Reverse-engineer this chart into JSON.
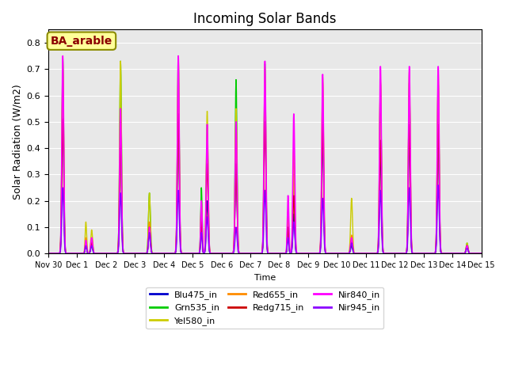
{
  "title": "Incoming Solar Bands",
  "xlabel": "Time",
  "ylabel": "Solar Radiation (W/m2)",
  "annotation_text": "BA_arable",
  "annotation_color": "#8B0000",
  "annotation_bg": "#FFFF99",
  "annotation_border": "#8B8B00",
  "background_color": "#E8E8E8",
  "ylim": [
    0,
    0.85
  ],
  "yticks": [
    0.0,
    0.1,
    0.2,
    0.3,
    0.4,
    0.5,
    0.6,
    0.7,
    0.8
  ],
  "series": [
    {
      "name": "Blu475_in",
      "color": "#0000CD",
      "lw": 1.0
    },
    {
      "name": "Grn535_in",
      "color": "#00CC00",
      "lw": 1.0
    },
    {
      "name": "Yel580_in",
      "color": "#CCCC00",
      "lw": 1.0
    },
    {
      "name": "Red655_in",
      "color": "#FF8C00",
      "lw": 1.0
    },
    {
      "name": "Redg715_in",
      "color": "#CC0000",
      "lw": 1.0
    },
    {
      "name": "Nir840_in",
      "color": "#FF00FF",
      "lw": 1.2
    },
    {
      "name": "Nir945_in",
      "color": "#8B00FF",
      "lw": 1.0
    }
  ],
  "xtick_labels": [
    "Nov 30",
    "Dec 1",
    "Dec 2",
    "Dec 3",
    "Dec 4",
    "Dec 5",
    "Dec 6",
    "Dec 7",
    "Dec 8",
    "Dec 9",
    "Dec 10",
    "Dec 11",
    "Dec 12",
    "Dec 13",
    "Dec 14",
    "Dec 15"
  ],
  "xtick_positions": [
    0,
    1,
    2,
    3,
    4,
    5,
    6,
    7,
    8,
    9,
    10,
    11,
    12,
    13,
    14,
    15
  ],
  "day_data": [
    {
      "day": 0,
      "peak1": [
        0.52,
        0.74,
        0.73,
        0.7,
        0.51,
        0.75,
        0.25
      ],
      "peak2": null
    },
    {
      "day": 1,
      "peak1": [
        0.03,
        0.05,
        0.09,
        0.06,
        0.04,
        0.06,
        0.03
      ],
      "peak2": [
        0.03,
        0.04,
        0.12,
        0.06,
        0.04,
        0.05,
        0.03
      ]
    },
    {
      "day": 2,
      "peak1": [
        0.43,
        0.73,
        0.73,
        0.5,
        0.45,
        0.55,
        0.23
      ],
      "peak2": null
    },
    {
      "day": 3,
      "peak1": [
        0.08,
        0.23,
        0.23,
        0.12,
        0.1,
        0.1,
        0.08
      ],
      "peak2": null
    },
    {
      "day": 4,
      "peak1": [
        0.52,
        0.74,
        0.75,
        0.68,
        0.53,
        0.75,
        0.24
      ],
      "peak2": null
    },
    {
      "day": 5,
      "peak1": [
        0.2,
        0.49,
        0.54,
        0.45,
        0.34,
        0.49,
        0.14
      ],
      "peak2": [
        0.1,
        0.25,
        0.2,
        0.18,
        0.12,
        0.2,
        0.08
      ]
    },
    {
      "day": 6,
      "peak1": [
        0.35,
        0.66,
        0.55,
        0.5,
        0.34,
        0.5,
        0.1
      ],
      "peak2": null
    },
    {
      "day": 7,
      "peak1": [
        0.57,
        0.72,
        0.71,
        0.65,
        0.5,
        0.73,
        0.24
      ],
      "peak2": null
    },
    {
      "day": 8,
      "peak1": [
        0.15,
        0.3,
        0.3,
        0.4,
        0.22,
        0.53,
        0.12
      ],
      "peak2": [
        0.08,
        0.1,
        0.14,
        0.16,
        0.1,
        0.22,
        0.06
      ]
    },
    {
      "day": 9,
      "peak1": [
        0.45,
        0.55,
        0.67,
        0.65,
        0.49,
        0.68,
        0.21
      ],
      "peak2": null
    },
    {
      "day": 10,
      "peak1": [
        0.03,
        0.05,
        0.21,
        0.07,
        0.05,
        0.06,
        0.04
      ],
      "peak2": null
    },
    {
      "day": 11,
      "peak1": [
        0.4,
        0.65,
        0.65,
        0.66,
        0.43,
        0.71,
        0.24
      ],
      "peak2": null
    },
    {
      "day": 12,
      "peak1": [
        0.45,
        0.65,
        0.69,
        0.65,
        0.49,
        0.71,
        0.25
      ],
      "peak2": null
    },
    {
      "day": 13,
      "peak1": [
        0.45,
        0.65,
        0.69,
        0.65,
        0.49,
        0.71,
        0.26
      ],
      "peak2": null
    },
    {
      "day": 14,
      "peak1": [
        0.03,
        0.04,
        0.04,
        0.03,
        0.03,
        0.03,
        0.02
      ],
      "peak2": null
    }
  ]
}
